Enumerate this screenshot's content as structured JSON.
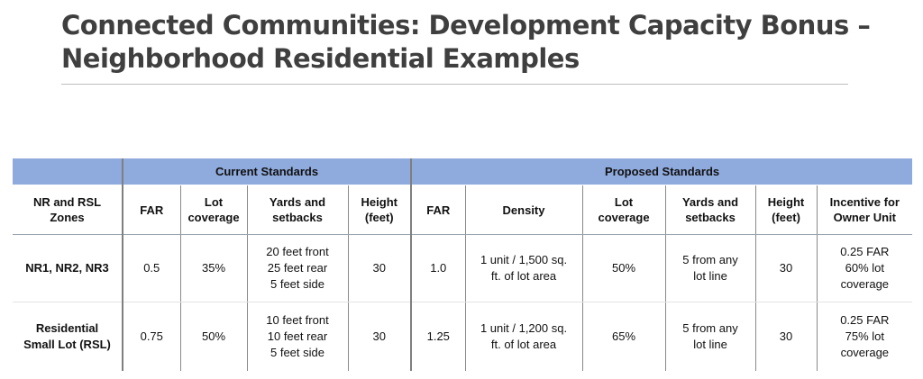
{
  "title": {
    "line1": "Connected Communities: Development Capacity Bonus –",
    "line2": "Neighborhood Residential Examples"
  },
  "table": {
    "groups": {
      "blank": "",
      "current": "Current Standards",
      "proposed": "Proposed Standards"
    },
    "headers": {
      "zone": "NR and RSL\nZones",
      "cur_far": "FAR",
      "cur_lot": "Lot\ncoverage",
      "cur_yards": "Yards and\nsetbacks",
      "cur_height": "Height\n(feet)",
      "prop_far": "FAR",
      "prop_density": "Density",
      "prop_lot": "Lot\ncoverage",
      "prop_yards": "Yards and\nsetbacks",
      "prop_height": "Height\n(feet)",
      "prop_incentive": "Incentive for\nOwner Unit"
    },
    "rows": [
      {
        "zone": "NR1, NR2, NR3",
        "cur_far": "0.5",
        "cur_lot": "35%",
        "cur_yards": "20 feet front\n25 feet rear\n5 feet side",
        "cur_height": "30",
        "prop_far": "1.0",
        "prop_density": "1 unit / 1,500 sq.\nft. of lot area",
        "prop_lot": "50%",
        "prop_yards": "5 from any\nlot line",
        "prop_height": "30",
        "prop_incentive": "0.25 FAR\n60% lot\ncoverage"
      },
      {
        "zone": "Residential\nSmall Lot (RSL)",
        "cur_far": "0.75",
        "cur_lot": "50%",
        "cur_yards": "10 feet front\n10 feet rear\n5 feet side",
        "cur_height": "30",
        "prop_far": "1.25",
        "prop_density": "1 unit / 1,200 sq.\nft. of lot area",
        "prop_lot": "65%",
        "prop_yards": "5 from any\nlot line",
        "prop_height": "30",
        "prop_incentive": "0.25 FAR\n75% lot\ncoverage"
      }
    ]
  }
}
